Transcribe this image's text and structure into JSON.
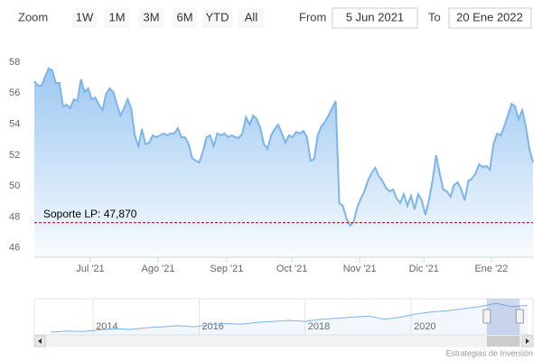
{
  "range_selector": {
    "zoom_label": "Zoom",
    "buttons": [
      "1W",
      "1M",
      "3M",
      "6M",
      "YTD",
      "All"
    ],
    "from_label": "From",
    "from_value": "5 Jun 2021",
    "to_label": "To",
    "to_value": "20 Ene 2022"
  },
  "chart_data": {
    "type": "area",
    "series": [
      {
        "color": "#7cb5ec",
        "values": [
          57.01,
          56.72,
          56.72,
          57.3,
          57.83,
          57.71,
          56.89,
          56.89,
          55.38,
          55.49,
          55.26,
          55.84,
          55.73,
          57.13,
          56.31,
          56.54,
          55.84,
          55.96,
          55.49,
          55.14,
          56.19,
          56.54,
          56.31,
          55.55,
          54.79,
          55.26,
          55.84,
          55.26,
          53.51,
          52.81,
          53.92,
          52.93,
          53.04,
          53.51,
          53.39,
          53.51,
          53.63,
          53.51,
          53.63,
          53.63,
          53.98,
          53.39,
          53.39,
          52.93,
          52.05,
          51.88,
          51.76,
          52.46,
          53.39,
          53.51,
          52.81,
          53.63,
          53.51,
          53.63,
          53.39,
          53.51,
          53.39,
          53.34,
          53.63,
          54.68,
          54.21,
          54.79,
          54.56,
          53.98,
          52.93,
          52.64,
          53.51,
          53.92,
          54.21,
          53.63,
          53.04,
          53.51,
          53.39,
          53.74,
          53.63,
          53.8,
          53.39,
          51.88,
          51.99,
          53.51,
          54.09,
          54.38,
          54.79,
          55.26,
          55.73,
          49.14,
          48.96,
          48.15,
          47.68,
          47.91,
          48.85,
          49.43,
          49.89,
          50.59,
          51.06,
          51.41,
          50.89,
          50.59,
          50.13,
          49.89,
          50.01,
          49.43,
          49.14,
          49.72,
          48.96,
          49.6,
          48.73,
          49.72,
          49.31,
          48.38,
          49.31,
          50.59,
          52.23,
          51.06,
          50.01,
          49.89,
          49.54,
          50.3,
          50.48,
          50.01,
          49.31,
          50.59,
          50.71,
          51.06,
          51.64,
          51.47,
          51.53,
          51.29,
          52.93,
          53.63,
          53.51,
          54.09,
          54.79,
          55.55,
          55.38,
          54.56,
          55.14,
          54.09,
          52.64,
          51.76
        ]
      }
    ],
    "xlim": [
      0,
      139
    ],
    "xticks": [
      {
        "value": 15.6,
        "label": "Jul '21"
      },
      {
        "value": 34.5,
        "label": "Ago '21"
      },
      {
        "value": 53.6,
        "label": "Sep '21"
      },
      {
        "value": 71.8,
        "label": "Oct '21"
      },
      {
        "value": 90.7,
        "label": "Nov '21"
      },
      {
        "value": 108.6,
        "label": "Dic '21"
      },
      {
        "value": 127.4,
        "label": "Ene '22"
      }
    ],
    "ylim": [
      45.64,
      58.64
    ],
    "yticks": [
      46,
      48,
      50,
      52,
      54,
      56,
      58
    ],
    "grid": false,
    "support": {
      "value": 47.87,
      "label": "Soporte LP: 47,870",
      "color": "#8b0000"
    }
  },
  "navigator": {
    "x": [
      2013.2,
      2013.5,
      2013.8,
      2014.1,
      2014.4,
      2014.7,
      2015.0,
      2015.3,
      2015.6,
      2015.9,
      2016.2,
      2016.5,
      2016.8,
      2017.1,
      2017.4,
      2017.7,
      2018.0,
      2018.3,
      2018.6,
      2018.9,
      2019.2,
      2019.5,
      2019.8,
      2020.1,
      2020.4,
      2020.7,
      2021.0,
      2021.3,
      2021.6,
      2021.9,
      2022.2
    ],
    "values": [
      28,
      29,
      28.5,
      30,
      31,
      30.5,
      32,
      33,
      34,
      33,
      35,
      36,
      35.5,
      37,
      38,
      39,
      38,
      40,
      41,
      42,
      43,
      40,
      42,
      45,
      47,
      48,
      50,
      52,
      55,
      52,
      53
    ],
    "xlim": [
      2012.89,
      2022.3
    ],
    "xticks": [
      2014,
      2016,
      2018,
      2020
    ],
    "selected": [
      2021.43,
      2022.05
    ]
  },
  "credit": "Estrategias de Inversión"
}
